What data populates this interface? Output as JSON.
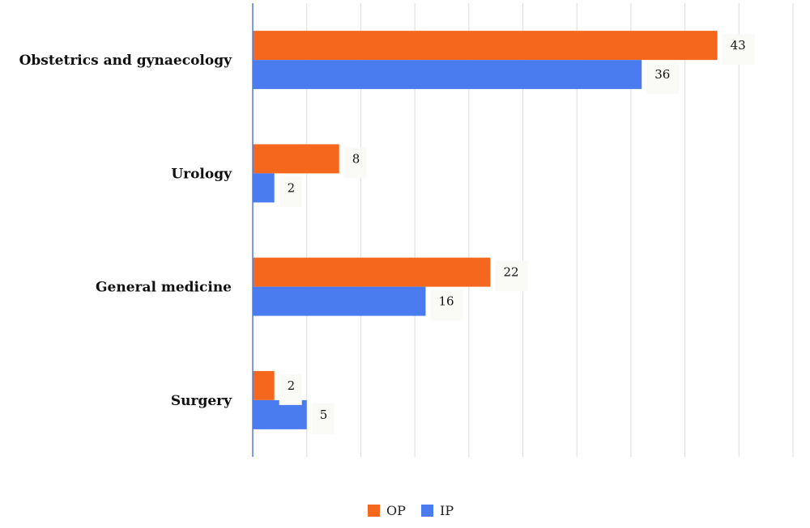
{
  "chart_data": {
    "type": "bar",
    "orientation": "horizontal",
    "categories": [
      "Obstetrics and gynaecology",
      "Urology",
      "General medicine",
      "Surgery"
    ],
    "series": [
      {
        "name": "OP",
        "values": [
          43,
          8,
          22,
          2
        ],
        "color": "#f4671c"
      },
      {
        "name": "IP",
        "values": [
          36,
          2,
          16,
          5
        ],
        "color": "#4a7cf0"
      }
    ],
    "xlim": [
      0,
      50
    ],
    "grid": true,
    "legend": "bottom-center",
    "data_labels": true
  },
  "colors": {
    "grid": "#dddddd",
    "axis": "#4a7cf0",
    "label_bg": "#fafaf7"
  }
}
